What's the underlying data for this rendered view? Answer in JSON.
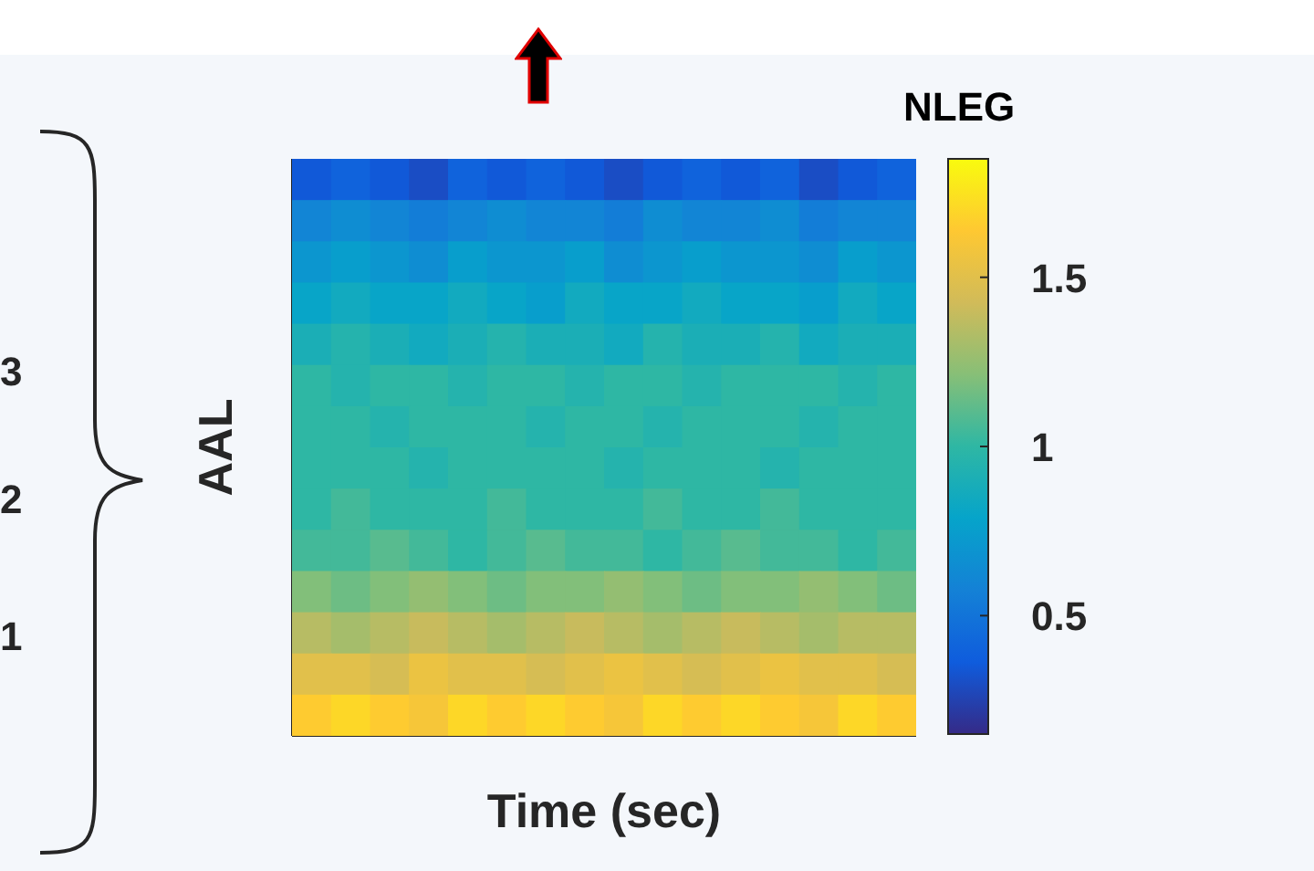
{
  "chart_data": {
    "type": "heatmap",
    "xlabel": "Time (sec)",
    "ylabel": "AAL",
    "clabel": "NLEG",
    "categories": [
      null,
      null,
      null,
      null,
      null,
      null,
      null,
      null,
      null,
      null,
      null,
      null,
      null,
      null,
      null,
      null
    ],
    "y_categories": [
      null,
      null,
      null,
      null,
      null,
      null,
      null,
      null,
      null,
      null,
      null,
      null,
      null,
      null
    ],
    "cells": [
      [
        0.35,
        0.4,
        0.35,
        0.3,
        0.4,
        0.35,
        0.4,
        0.35,
        0.3,
        0.35,
        0.4,
        0.35,
        0.4,
        0.3,
        0.35,
        0.4
      ],
      [
        0.6,
        0.65,
        0.6,
        0.55,
        0.6,
        0.65,
        0.6,
        0.6,
        0.55,
        0.65,
        0.6,
        0.6,
        0.65,
        0.55,
        0.6,
        0.6
      ],
      [
        0.7,
        0.75,
        0.7,
        0.65,
        0.75,
        0.7,
        0.7,
        0.75,
        0.65,
        0.7,
        0.75,
        0.7,
        0.7,
        0.65,
        0.75,
        0.7
      ],
      [
        0.8,
        0.85,
        0.8,
        0.8,
        0.85,
        0.8,
        0.75,
        0.85,
        0.8,
        0.8,
        0.85,
        0.8,
        0.8,
        0.75,
        0.85,
        0.8
      ],
      [
        0.9,
        0.95,
        0.9,
        0.85,
        0.9,
        0.95,
        0.9,
        0.9,
        0.85,
        0.95,
        0.9,
        0.9,
        0.95,
        0.85,
        0.9,
        0.9
      ],
      [
        1.0,
        0.95,
        1.0,
        1.0,
        0.95,
        1.0,
        1.0,
        0.95,
        1.0,
        1.0,
        0.95,
        1.0,
        1.0,
        1.0,
        0.95,
        1.0
      ],
      [
        1.0,
        1.0,
        0.95,
        1.0,
        1.0,
        1.0,
        0.95,
        1.0,
        1.0,
        0.95,
        1.0,
        1.0,
        1.0,
        0.95,
        1.0,
        1.0
      ],
      [
        1.0,
        1.0,
        1.0,
        0.95,
        1.0,
        1.0,
        1.0,
        1.0,
        0.95,
        1.0,
        1.0,
        1.0,
        0.95,
        1.0,
        1.0,
        1.0
      ],
      [
        1.0,
        1.05,
        1.0,
        1.0,
        1.0,
        1.05,
        1.0,
        1.0,
        1.0,
        1.05,
        1.0,
        1.0,
        1.05,
        1.0,
        1.0,
        1.0
      ],
      [
        1.05,
        1.05,
        1.1,
        1.05,
        1.0,
        1.05,
        1.1,
        1.05,
        1.05,
        1.0,
        1.05,
        1.1,
        1.05,
        1.05,
        1.0,
        1.05
      ],
      [
        1.2,
        1.15,
        1.2,
        1.25,
        1.2,
        1.15,
        1.2,
        1.2,
        1.25,
        1.2,
        1.15,
        1.2,
        1.2,
        1.25,
        1.2,
        1.15
      ],
      [
        1.35,
        1.3,
        1.35,
        1.4,
        1.35,
        1.3,
        1.35,
        1.4,
        1.35,
        1.3,
        1.35,
        1.4,
        1.35,
        1.3,
        1.35,
        1.35
      ],
      [
        1.5,
        1.5,
        1.45,
        1.55,
        1.5,
        1.5,
        1.45,
        1.5,
        1.55,
        1.5,
        1.45,
        1.5,
        1.55,
        1.5,
        1.5,
        1.45
      ],
      [
        1.65,
        1.7,
        1.65,
        1.6,
        1.7,
        1.65,
        1.7,
        1.65,
        1.6,
        1.7,
        1.65,
        1.7,
        1.65,
        1.6,
        1.7,
        1.65
      ]
    ],
    "clim": [
      0.15,
      1.85
    ],
    "cticks": [
      0.5,
      1,
      1.5
    ],
    "annotations": [
      "3",
      "2",
      "1"
    ]
  }
}
